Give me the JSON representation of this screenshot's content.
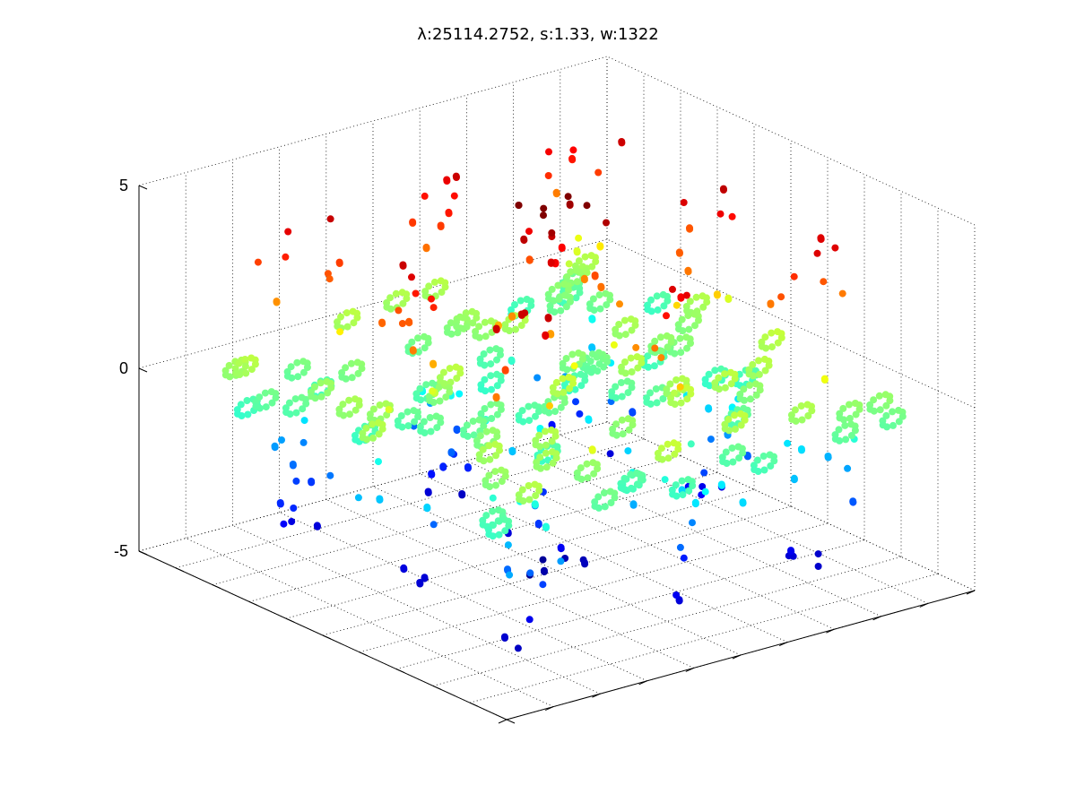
{
  "chart_data": {
    "type": "scatter",
    "title": "λ:25114.2752, s:1.33, w:1322",
    "xlabel": "",
    "ylabel": "",
    "zlabel": "",
    "zlim": [
      -5,
      5
    ],
    "z_ticks": [
      5,
      0,
      -5
    ],
    "z_tick_labels": [
      "5",
      "0",
      "-5"
    ],
    "grid": true,
    "colormap": "jet",
    "colorscale": [
      "#00008f",
      "#0000ff",
      "#0080ff",
      "#00ffff",
      "#80ff80",
      "#ffff00",
      "#ff8000",
      "#ff0000",
      "#800000"
    ],
    "marker": "filled-circle",
    "point_count": 1322,
    "structure": "fractal lattice of diamond-shaped clusters arranged in a 3x3 pattern around a central column; color encodes z"
  }
}
